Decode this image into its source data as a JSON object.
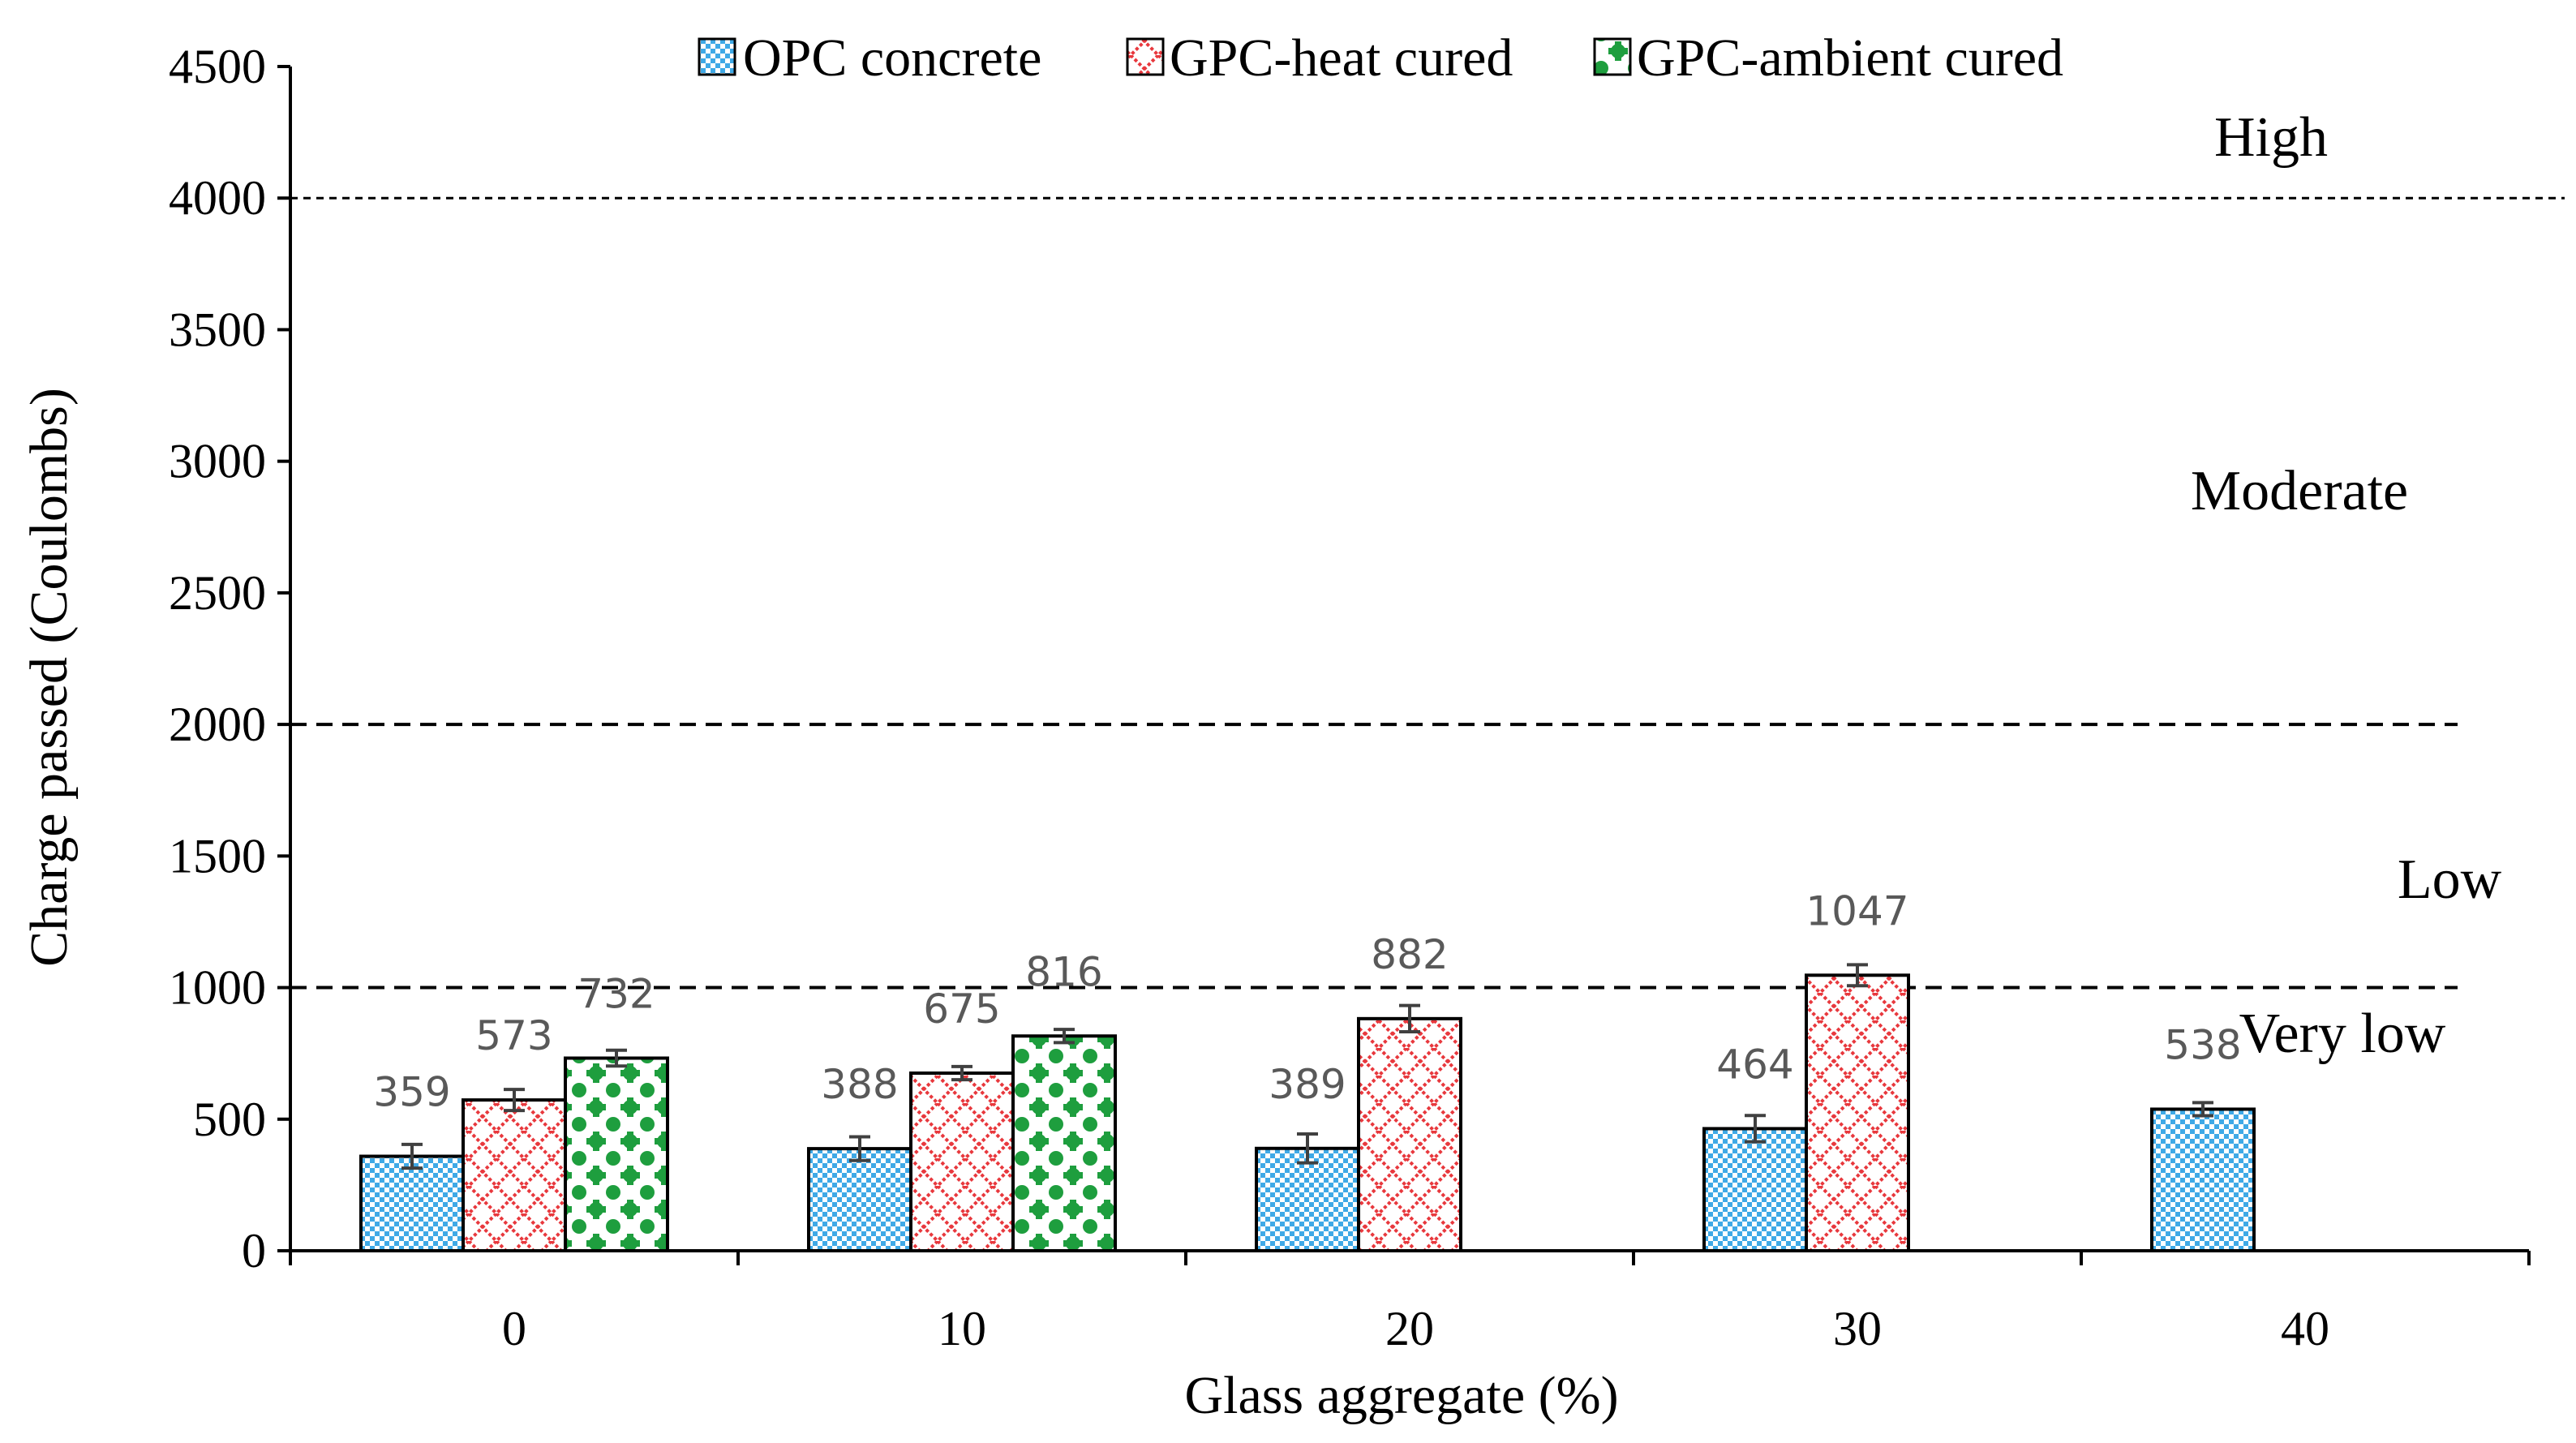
{
  "chart_data": {
    "type": "bar",
    "title": "",
    "xlabel": "Glass aggregate (%)",
    "ylabel": "Charge passed (Coulombs)",
    "ylim": [
      0,
      4500
    ],
    "yticks": [
      "0",
      "500",
      "1000",
      "1500",
      "2000",
      "2500",
      "3000",
      "3500",
      "4000",
      "4500"
    ],
    "categories": [
      "0",
      "10",
      "20",
      "30",
      "40"
    ],
    "legend_position": "top",
    "series": [
      {
        "name": "OPC concrete",
        "color": "#3fa9e6",
        "pattern": "checker",
        "values": [
          359,
          388,
          389,
          464,
          538
        ],
        "labels": [
          "359",
          "388",
          "389",
          "464",
          "538"
        ],
        "errors": [
          45,
          45,
          55,
          50,
          25
        ]
      },
      {
        "name": "GPC-heat cured",
        "color": "#e8383d",
        "pattern": "diamond-lattice",
        "values": [
          573,
          675,
          882,
          1047,
          null
        ],
        "labels": [
          "573",
          "675",
          "882",
          "1047",
          ""
        ],
        "errors": [
          40,
          25,
          50,
          40,
          null
        ]
      },
      {
        "name": "GPC-ambient cured",
        "color": "#1e9e3e",
        "pattern": "dots",
        "values": [
          732,
          816,
          null,
          null,
          null
        ],
        "labels": [
          "732",
          "816",
          "",
          "",
          ""
        ],
        "errors": [
          30,
          25,
          null,
          null,
          null
        ]
      }
    ],
    "thresholds": [
      {
        "value": 1000,
        "style": "dashed"
      },
      {
        "value": 2000,
        "style": "dashed"
      },
      {
        "value": 4000,
        "style": "dotted"
      }
    ],
    "zones": [
      {
        "label": "High",
        "level": 4250
      },
      {
        "label": "Moderate",
        "level": 2880
      },
      {
        "label": "Low",
        "level": 1410
      },
      {
        "label": "Very low",
        "level": 800
      }
    ]
  }
}
